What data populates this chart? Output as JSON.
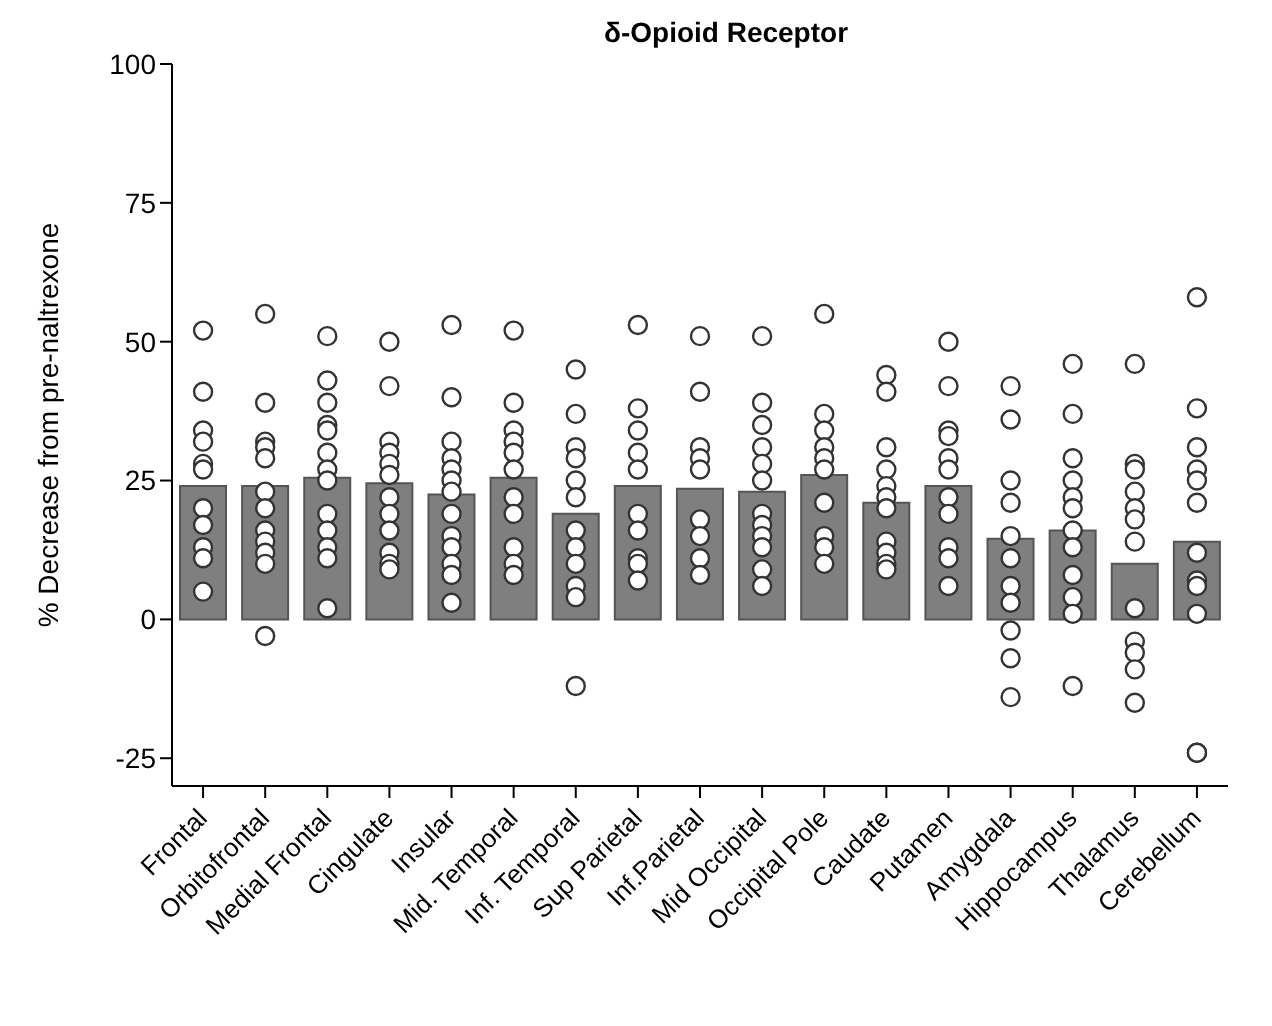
{
  "chart_data": {
    "type": "bar",
    "title": "δ-Opioid Receptor",
    "ylabel": "% Decrease from pre-naltrexone",
    "categories": [
      "Frontal",
      "Orbitofrontal",
      "Medial Frontal",
      "Cingulate",
      "Insular",
      "Mid. Temporal",
      "Inf. Temporal",
      "Sup Parietal",
      "Inf.Parietal",
      "Mid Occipital",
      "Occipital Pole",
      "Caudate",
      "Putamen",
      "Amygdala",
      "Hippocampus",
      "Thalamus",
      "Cerebellum"
    ],
    "ylim": [
      -30,
      100
    ],
    "yticks": [
      -25,
      0,
      25,
      50,
      75,
      100
    ],
    "grid": false,
    "legend": false,
    "marker": "circle",
    "series": [
      {
        "color": "#7f7f7f",
        "values": [
          24,
          24,
          25.5,
          24.5,
          22.5,
          25.5,
          19,
          24,
          23.5,
          23,
          26,
          21,
          24,
          14.5,
          16,
          10,
          14
        ]
      },
      {
        "type": "scatter",
        "color": "#ffffff",
        "x": [
          "Frontal",
          "Frontal",
          "Frontal",
          "Frontal",
          "Frontal",
          "Frontal",
          "Frontal",
          "Frontal",
          "Frontal",
          "Frontal",
          "Frontal",
          "Orbitofrontal",
          "Orbitofrontal",
          "Orbitofrontal",
          "Orbitofrontal",
          "Orbitofrontal",
          "Orbitofrontal",
          "Orbitofrontal",
          "Orbitofrontal",
          "Orbitofrontal",
          "Orbitofrontal",
          "Orbitofrontal",
          "Orbitofrontal",
          "Medial Frontal",
          "Medial Frontal",
          "Medial Frontal",
          "Medial Frontal",
          "Medial Frontal",
          "Medial Frontal",
          "Medial Frontal",
          "Medial Frontal",
          "Medial Frontal",
          "Medial Frontal",
          "Medial Frontal",
          "Medial Frontal",
          "Medial Frontal",
          "Cingulate",
          "Cingulate",
          "Cingulate",
          "Cingulate",
          "Cingulate",
          "Cingulate",
          "Cingulate",
          "Cingulate",
          "Cingulate",
          "Cingulate",
          "Cingulate",
          "Cingulate",
          "Insular",
          "Insular",
          "Insular",
          "Insular",
          "Insular",
          "Insular",
          "Insular",
          "Insular",
          "Insular",
          "Insular",
          "Insular",
          "Insular",
          "Insular",
          "Mid. Temporal",
          "Mid. Temporal",
          "Mid. Temporal",
          "Mid. Temporal",
          "Mid. Temporal",
          "Mid. Temporal",
          "Mid. Temporal",
          "Mid. Temporal",
          "Mid. Temporal",
          "Mid. Temporal",
          "Mid. Temporal",
          "Inf. Temporal",
          "Inf. Temporal",
          "Inf. Temporal",
          "Inf. Temporal",
          "Inf. Temporal",
          "Inf. Temporal",
          "Inf. Temporal",
          "Inf. Temporal",
          "Inf. Temporal",
          "Inf. Temporal",
          "Inf. Temporal",
          "Inf. Temporal",
          "Sup Parietal",
          "Sup Parietal",
          "Sup Parietal",
          "Sup Parietal",
          "Sup Parietal",
          "Sup Parietal",
          "Sup Parietal",
          "Sup Parietal",
          "Sup Parietal",
          "Sup Parietal",
          "Inf.Parietal",
          "Inf.Parietal",
          "Inf.Parietal",
          "Inf.Parietal",
          "Inf.Parietal",
          "Inf.Parietal",
          "Inf.Parietal",
          "Inf.Parietal",
          "Inf.Parietal",
          "Mid Occipital",
          "Mid Occipital",
          "Mid Occipital",
          "Mid Occipital",
          "Mid Occipital",
          "Mid Occipital",
          "Mid Occipital",
          "Mid Occipital",
          "Mid Occipital",
          "Mid Occipital",
          "Mid Occipital",
          "Mid Occipital",
          "Occipital Pole",
          "Occipital Pole",
          "Occipital Pole",
          "Occipital Pole",
          "Occipital Pole",
          "Occipital Pole",
          "Occipital Pole",
          "Occipital Pole",
          "Occipital Pole",
          "Occipital Pole",
          "Caudate",
          "Caudate",
          "Caudate",
          "Caudate",
          "Caudate",
          "Caudate",
          "Caudate",
          "Caudate",
          "Caudate",
          "Caudate",
          "Caudate",
          "Putamen",
          "Putamen",
          "Putamen",
          "Putamen",
          "Putamen",
          "Putamen",
          "Putamen",
          "Putamen",
          "Putamen",
          "Putamen",
          "Putamen",
          "Amygdala",
          "Amygdala",
          "Amygdala",
          "Amygdala",
          "Amygdala",
          "Amygdala",
          "Amygdala",
          "Amygdala",
          "Amygdala",
          "Amygdala",
          "Amygdala",
          "Hippocampus",
          "Hippocampus",
          "Hippocampus",
          "Hippocampus",
          "Hippocampus",
          "Hippocampus",
          "Hippocampus",
          "Hippocampus",
          "Hippocampus",
          "Hippocampus",
          "Hippocampus",
          "Hippocampus",
          "Thalamus",
          "Thalamus",
          "Thalamus",
          "Thalamus",
          "Thalamus",
          "Thalamus",
          "Thalamus",
          "Thalamus",
          "Thalamus",
          "Thalamus",
          "Thalamus",
          "Thalamus",
          "Cerebellum",
          "Cerebellum",
          "Cerebellum",
          "Cerebellum",
          "Cerebellum",
          "Cerebellum",
          "Cerebellum",
          "Cerebellum",
          "Cerebellum",
          "Cerebellum",
          "Cerebellum",
          "Cerebellum"
        ],
        "values": [
          52,
          41,
          34,
          32,
          28,
          27,
          20,
          17,
          13,
          11,
          5,
          55,
          39,
          32,
          31,
          29,
          23,
          20,
          16,
          14,
          12,
          10,
          -3,
          51,
          43,
          39,
          35,
          34,
          30,
          27,
          25,
          19,
          16,
          13,
          11,
          2,
          50,
          42,
          32,
          30,
          28,
          26,
          22,
          19,
          16,
          12,
          10,
          9,
          53,
          40,
          32,
          29,
          27,
          25,
          23,
          19,
          15,
          13,
          10,
          8,
          3,
          52,
          39,
          34,
          32,
          30,
          27,
          22,
          19,
          13,
          10,
          8,
          45,
          37,
          31,
          29,
          25,
          22,
          16,
          13,
          10,
          6,
          4,
          -12,
          53,
          38,
          34,
          30,
          27,
          19,
          16,
          11,
          10,
          7,
          51,
          41,
          31,
          29,
          27,
          18,
          15,
          11,
          8,
          51,
          39,
          35,
          31,
          28,
          25,
          19,
          17,
          15,
          13,
          9,
          6,
          55,
          37,
          34,
          31,
          29,
          27,
          21,
          15,
          13,
          10,
          44,
          41,
          31,
          27,
          24,
          22,
          20,
          14,
          12,
          10,
          9,
          50,
          42,
          34,
          33,
          29,
          27,
          22,
          19,
          13,
          11,
          6,
          42,
          36,
          25,
          21,
          15,
          11,
          6,
          3,
          -2,
          -7,
          -14,
          46,
          37,
          29,
          25,
          22,
          20,
          16,
          13,
          8,
          4,
          1,
          -12,
          46,
          28,
          27,
          23,
          20,
          18,
          14,
          2,
          -4,
          -6,
          -9,
          -15,
          58,
          38,
          31,
          27,
          25,
          21,
          12,
          7,
          6,
          1,
          -24,
          -24
        ]
      }
    ]
  }
}
